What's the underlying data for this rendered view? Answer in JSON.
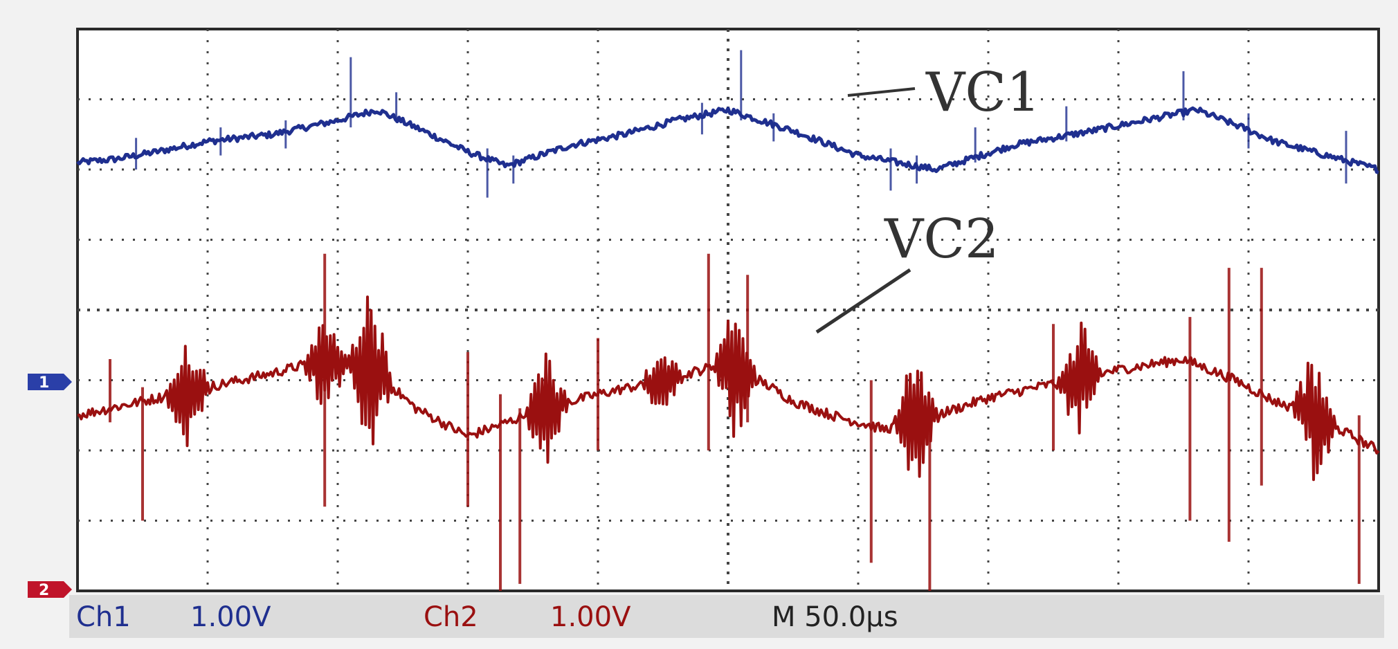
{
  "chart_data": {
    "type": "line",
    "xlabel": "",
    "ylabel": "",
    "grid": true,
    "x_divisions": 10,
    "y_divisions": 8,
    "x_range_div": [
      0,
      10
    ],
    "y_range_div": [
      0,
      8
    ],
    "annotations": [
      "VC1",
      "VC2"
    ],
    "readout": {
      "ch1_label": "Ch1",
      "ch1_scale": "1.00V",
      "ch2_label": "Ch2",
      "ch2_scale": "1.00V",
      "timebase": "M 50.0µs"
    },
    "colors": {
      "ch1": "#1f2f8f",
      "ch2": "#9a1010",
      "ch1_marker": "#2a3fa8",
      "ch2_marker": "#c0142a"
    },
    "series": [
      {
        "name": "VC1",
        "color": "#1f2f8f",
        "x": [
          0,
          0.3,
          0.6,
          1.0,
          1.5,
          2.0,
          2.3,
          2.6,
          3.0,
          3.3,
          3.8,
          4.2,
          4.6,
          5.0,
          5.5,
          6.0,
          6.6,
          7.2,
          7.8,
          8.2,
          8.6,
          8.95,
          9.2,
          9.5,
          9.8,
          10
        ],
        "y": [
          6.1,
          6.15,
          6.25,
          6.4,
          6.5,
          6.7,
          6.85,
          6.6,
          6.25,
          6.05,
          6.35,
          6.5,
          6.7,
          6.85,
          6.55,
          6.2,
          6.0,
          6.35,
          6.55,
          6.7,
          6.85,
          6.6,
          6.4,
          6.25,
          6.1,
          6.0
        ],
        "spikes": [
          {
            "x": 0.45,
            "lo": 6.0,
            "hi": 6.45
          },
          {
            "x": 1.1,
            "lo": 6.2,
            "hi": 6.6
          },
          {
            "x": 1.6,
            "lo": 6.3,
            "hi": 6.7
          },
          {
            "x": 2.1,
            "lo": 6.6,
            "hi": 7.6
          },
          {
            "x": 2.45,
            "lo": 6.7,
            "hi": 7.1
          },
          {
            "x": 3.15,
            "lo": 5.6,
            "hi": 6.3
          },
          {
            "x": 3.35,
            "lo": 5.8,
            "hi": 6.2
          },
          {
            "x": 4.8,
            "lo": 6.5,
            "hi": 6.95
          },
          {
            "x": 5.1,
            "lo": 6.7,
            "hi": 7.7
          },
          {
            "x": 5.35,
            "lo": 6.4,
            "hi": 6.8
          },
          {
            "x": 6.25,
            "lo": 5.7,
            "hi": 6.3
          },
          {
            "x": 6.45,
            "lo": 5.8,
            "hi": 6.2
          },
          {
            "x": 6.9,
            "lo": 6.1,
            "hi": 6.6
          },
          {
            "x": 7.6,
            "lo": 6.4,
            "hi": 6.9
          },
          {
            "x": 8.5,
            "lo": 6.7,
            "hi": 7.4
          },
          {
            "x": 9.0,
            "lo": 6.3,
            "hi": 6.8
          },
          {
            "x": 9.75,
            "lo": 5.8,
            "hi": 6.55
          }
        ]
      },
      {
        "name": "VC2",
        "color": "#9a1010",
        "x": [
          0,
          0.5,
          1.0,
          1.5,
          1.9,
          2.3,
          2.6,
          3.0,
          3.3,
          3.6,
          4.0,
          4.5,
          4.9,
          5.2,
          5.5,
          5.8,
          6.2,
          6.6,
          7.0,
          7.5,
          8.0,
          8.5,
          8.9,
          9.2,
          9.5,
          9.8,
          10
        ],
        "y": [
          2.5,
          2.7,
          2.9,
          3.1,
          3.3,
          3.1,
          2.6,
          2.2,
          2.4,
          2.6,
          2.8,
          3.0,
          3.2,
          3.05,
          2.7,
          2.5,
          2.3,
          2.5,
          2.75,
          2.95,
          3.15,
          3.3,
          3.0,
          2.7,
          2.5,
          2.2,
          2.0
        ],
        "bursts": [
          {
            "x": 0.85,
            "amp": 0.9
          },
          {
            "x": 1.9,
            "amp": 0.8
          },
          {
            "x": 2.25,
            "amp": 1.2
          },
          {
            "x": 3.6,
            "amp": 0.9
          },
          {
            "x": 4.5,
            "amp": 0.5
          },
          {
            "x": 5.05,
            "amp": 1.0
          },
          {
            "x": 6.45,
            "amp": 1.1
          },
          {
            "x": 7.7,
            "amp": 0.9
          },
          {
            "x": 9.5,
            "amp": 1.0
          }
        ],
        "spikes": [
          {
            "x": 0.25,
            "lo": 2.4,
            "hi": 3.3
          },
          {
            "x": 0.5,
            "lo": 1.0,
            "hi": 2.9
          },
          {
            "x": 1.9,
            "lo": 1.2,
            "hi": 4.8
          },
          {
            "x": 3.0,
            "lo": 1.2,
            "hi": 3.4
          },
          {
            "x": 3.25,
            "lo": 0.0,
            "hi": 2.8
          },
          {
            "x": 3.4,
            "lo": 0.1,
            "hi": 2.6
          },
          {
            "x": 4.0,
            "lo": 2.0,
            "hi": 3.6
          },
          {
            "x": 4.85,
            "lo": 2.0,
            "hi": 4.8
          },
          {
            "x": 5.15,
            "lo": 2.4,
            "hi": 4.5
          },
          {
            "x": 6.1,
            "lo": 0.4,
            "hi": 3.0
          },
          {
            "x": 6.55,
            "lo": 0.0,
            "hi": 2.6
          },
          {
            "x": 7.5,
            "lo": 2.0,
            "hi": 3.8
          },
          {
            "x": 8.55,
            "lo": 1.0,
            "hi": 3.9
          },
          {
            "x": 8.85,
            "lo": 0.7,
            "hi": 4.6
          },
          {
            "x": 9.1,
            "lo": 1.5,
            "hi": 4.6
          },
          {
            "x": 9.85,
            "lo": 0.1,
            "hi": 2.5
          }
        ]
      }
    ]
  }
}
